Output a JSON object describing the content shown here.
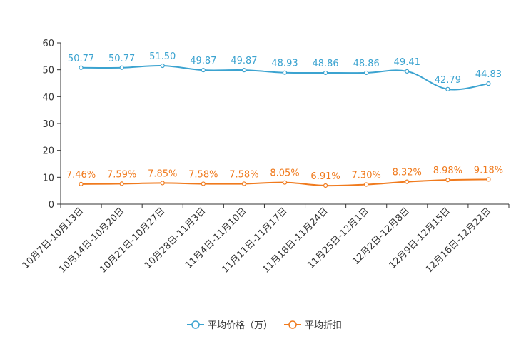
{
  "chart_data": {
    "type": "line",
    "title": "",
    "xlabel": "",
    "ylabel": "",
    "ylim": [
      0,
      60
    ],
    "yticks": [
      0,
      10,
      20,
      30,
      40,
      50,
      60
    ],
    "grid": false,
    "legend_position": "bottom-center",
    "categories": [
      "10月7日-10月13日",
      "10月14日-10月20日",
      "10月21日-10月27日",
      "10月28日-11月3日",
      "11月4日-11月10日",
      "11月11日-11月17日",
      "11月18日-11月24日",
      "11月25日-12月1日",
      "12月2日-12月8日",
      "12月9日-12月15日",
      "12月16日-12月22日"
    ],
    "series": [
      {
        "name": "平均价格（万）",
        "color": "#3ba3d0",
        "values": [
          50.77,
          50.77,
          51.5,
          49.87,
          49.87,
          48.93,
          48.86,
          48.86,
          49.41,
          42.79,
          44.83
        ],
        "labels": [
          "50.77",
          "50.77",
          "51.50",
          "49.87",
          "49.87",
          "48.93",
          "48.86",
          "48.86",
          "49.41",
          "42.79",
          "44.83"
        ]
      },
      {
        "name": "平均折扣",
        "color": "#f07a1d",
        "values": [
          7.46,
          7.59,
          7.85,
          7.58,
          7.58,
          8.05,
          6.91,
          7.3,
          8.32,
          8.98,
          9.18
        ],
        "labels": [
          "7.46%",
          "7.59%",
          "7.85%",
          "7.58%",
          "7.58%",
          "8.05%",
          "6.91%",
          "7.30%",
          "8.32%",
          "8.98%",
          "9.18%"
        ]
      }
    ]
  }
}
